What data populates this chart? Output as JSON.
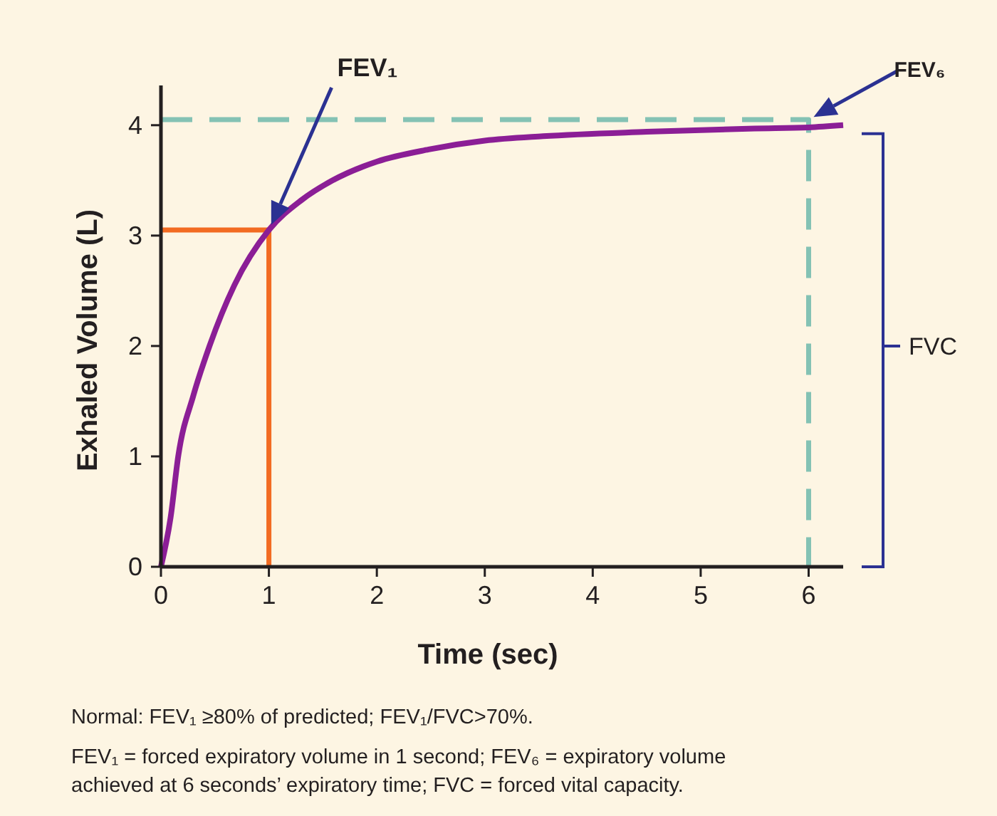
{
  "chart_data": {
    "type": "line",
    "xlabel": "Time (sec)",
    "ylabel": "Exhaled Volume (L)",
    "xlim": [
      0,
      6.32
    ],
    "ylim": [
      0,
      4.36
    ],
    "xticks": [
      0,
      1,
      2,
      3,
      4,
      5,
      6
    ],
    "yticks": [
      0,
      1,
      2,
      3,
      4
    ],
    "grid": false,
    "marker": "none",
    "series": [
      {
        "color": "#8b1e96",
        "x": [
          0,
          0.09,
          0.16,
          0.3,
          0.45,
          0.68,
          1,
          1.3,
          1.59,
          2,
          2.48,
          3,
          3.54,
          4.5,
          5.5,
          6,
          6.32
        ],
        "values": [
          0,
          0.45,
          1,
          1.55,
          2,
          2.55,
          3.05,
          3.32,
          3.5,
          3.67,
          3.78,
          3.86,
          3.9,
          3.94,
          3.97,
          3.98,
          4.0
        ]
      },
      {
        "color": "#f26b22",
        "x": [
          0,
          1,
          1
        ],
        "values": [
          3.05,
          3.05,
          0
        ]
      },
      {
        "color": "#84c2b4",
        "x": [
          0,
          6,
          6
        ],
        "values": [
          4.05,
          4.05,
          0
        ],
        "line_style": "dashed"
      }
    ],
    "annotations": [
      "FEV₁",
      "FEV₆",
      "FVC",
      "Normal: FEV₁ ≥80% of predicted; FEV₁/FVC>70%.",
      "FEV₁ = forced expiratory volume in 1 second; FEV₆ = expiratory volume achieved at 6 seconds’ expiratory time; FVC = forced vital capacity."
    ]
  }
}
